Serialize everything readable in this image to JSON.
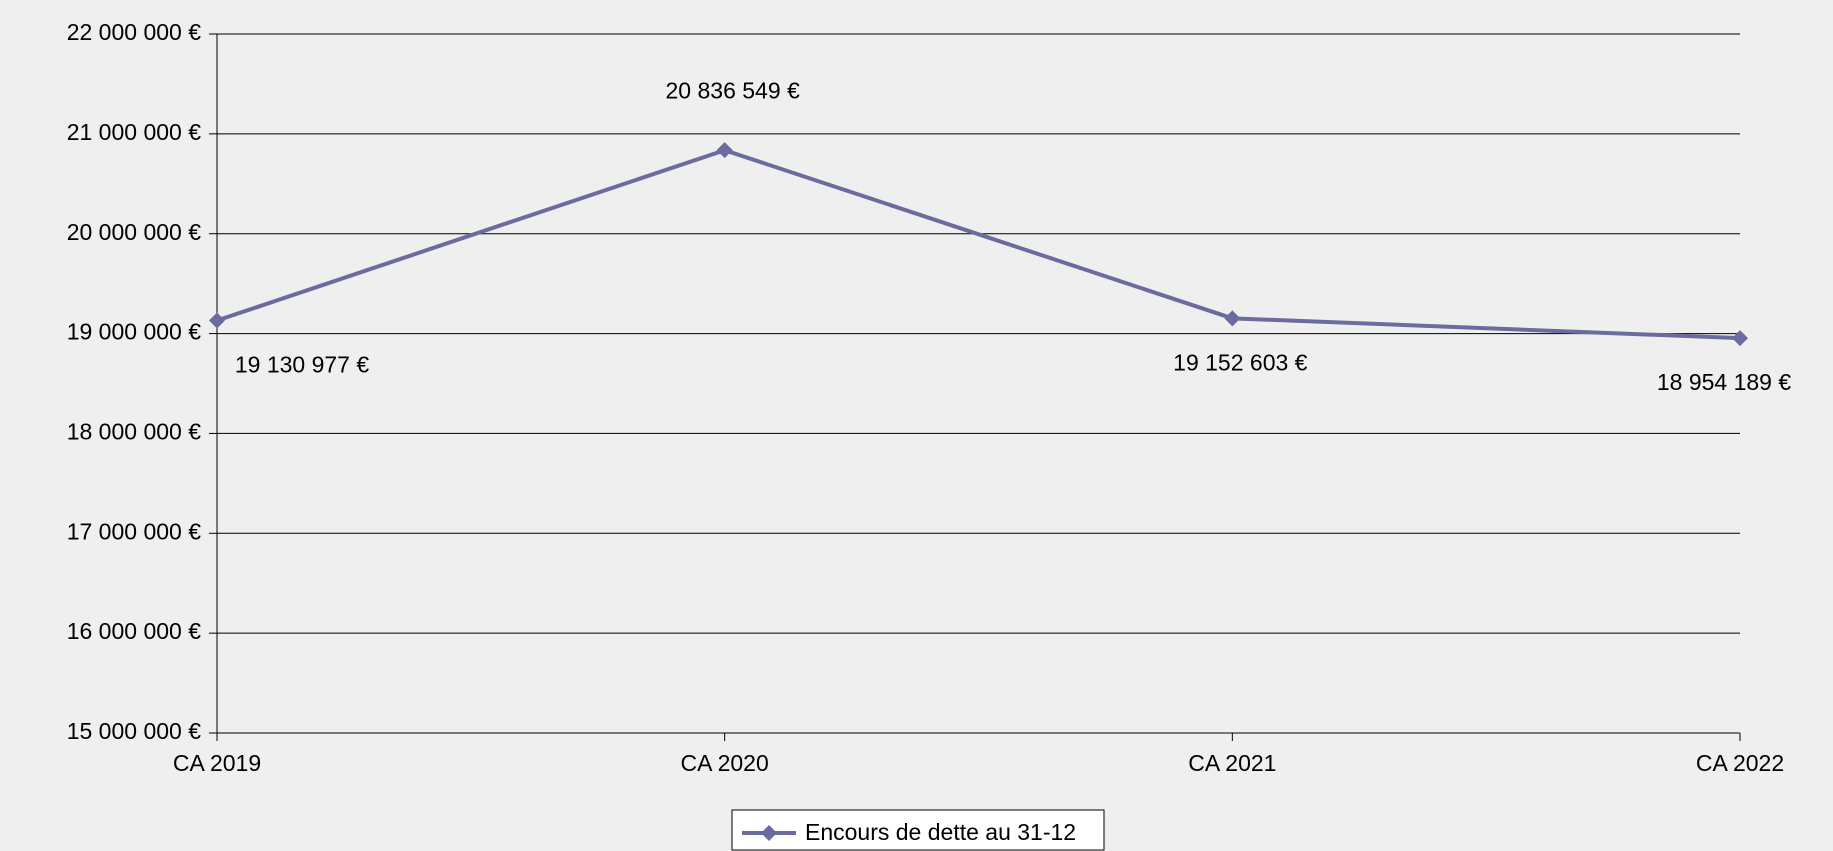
{
  "chart_data": {
    "type": "line",
    "categories": [
      "CA 2019",
      "CA 2020",
      "CA 2021",
      "CA 2022"
    ],
    "series": [
      {
        "name": "Encours de dette au 31-12",
        "color": "#6b6b9f",
        "values": [
          19130977,
          20836549,
          19152603,
          18954189
        ],
        "value_labels": [
          "19 130 977 €",
          "20 836 549 €",
          "19 152 603 €",
          "18 954 189 €"
        ]
      }
    ],
    "ylim": [
      15000000,
      22000000
    ],
    "yticks": [
      {
        "value": 15000000,
        "label": "15 000 000 €"
      },
      {
        "value": 16000000,
        "label": "16 000 000 €"
      },
      {
        "value": 17000000,
        "label": "17 000 000 €"
      },
      {
        "value": 18000000,
        "label": "18 000 000 €"
      },
      {
        "value": 19000000,
        "label": "19 000 000 €"
      },
      {
        "value": 20000000,
        "label": "20 000 000 €"
      },
      {
        "value": 21000000,
        "label": "21 000 000 €"
      },
      {
        "value": 22000000,
        "label": "22 000 000 €"
      }
    ],
    "grid": true,
    "legend": "bottom"
  }
}
